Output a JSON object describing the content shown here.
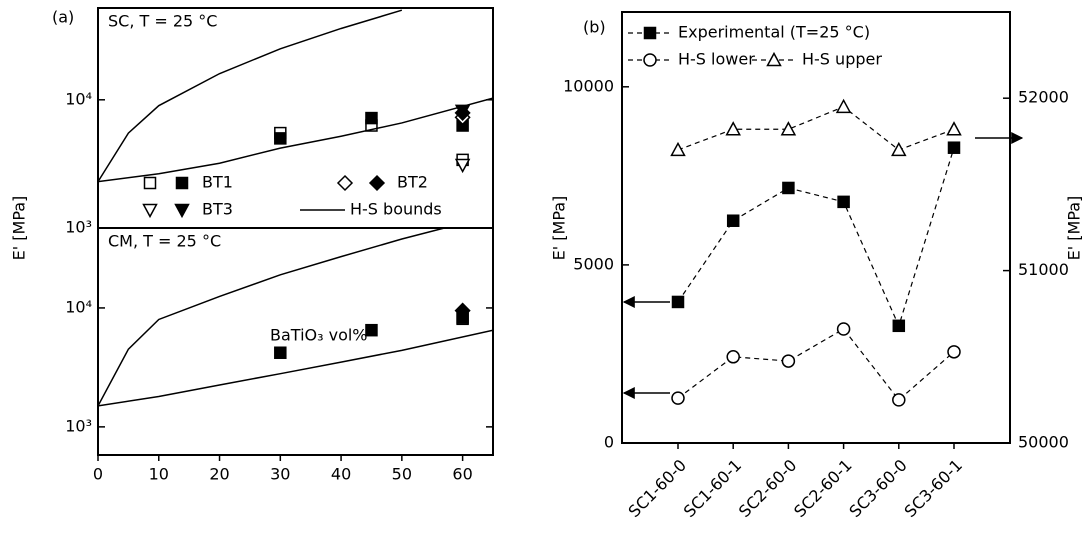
{
  "chart_data": [
    {
      "type": "scatter",
      "panel_label": "(a)",
      "title": "SC,  T = 25 °C",
      "ylabel": "E' [MPa]",
      "xlim": [
        0,
        65
      ],
      "ylim": [
        1000,
        52000
      ],
      "log_y": true,
      "yticks": [
        {
          "value": 1000,
          "label": "10³"
        },
        {
          "value": 10000,
          "label": "10⁴"
        }
      ],
      "legend": true,
      "series": [
        {
          "marker": "square",
          "filled": false,
          "color": "#000000",
          "x": [
            30,
            45,
            60
          ],
          "values": [
            5500,
            6300,
            3400
          ]
        },
        {
          "name": "BT1",
          "marker": "square",
          "filled": true,
          "color": "#000000",
          "x": [
            30,
            45,
            60
          ],
          "values": [
            5000,
            7200,
            6300
          ]
        },
        {
          "marker": "diamond",
          "filled": false,
          "color": "#000000",
          "x": [
            60
          ],
          "values": [
            7300
          ]
        },
        {
          "name": "BT2",
          "marker": "diamond",
          "filled": true,
          "color": "#000000",
          "x": [
            60
          ],
          "values": [
            7900
          ]
        },
        {
          "marker": "triangle-down",
          "filled": false,
          "color": "#000000",
          "x": [
            60
          ],
          "values": [
            3100
          ]
        },
        {
          "name": "BT3",
          "marker": "triangle-down",
          "filled": true,
          "color": "#000000",
          "x": [
            60
          ],
          "values": [
            8200
          ]
        },
        {
          "name": "H-S bounds",
          "marker": "none",
          "color": "#000000",
          "x": [
            0,
            10,
            20,
            30,
            40,
            50,
            65
          ],
          "values": [
            2300,
            2650,
            3200,
            4200,
            5200,
            6600,
            10300
          ]
        },
        {
          "marker": "none",
          "color": "#000000",
          "x": [
            0,
            5,
            10,
            20,
            30,
            40,
            50
          ],
          "values": [
            2300,
            5500,
            9000,
            16000,
            25000,
            36000,
            50000
          ]
        }
      ]
    },
    {
      "type": "scatter",
      "title": "CM,  T = 25 °C",
      "annotation": "BaTiO₃ vol%",
      "xlim": [
        0,
        65
      ],
      "xticks": [
        0,
        10,
        20,
        30,
        40,
        50,
        60
      ],
      "ylim": [
        580,
        47000
      ],
      "log_y": true,
      "yticks": [
        {
          "value": 1000,
          "label": "10³"
        },
        {
          "value": 10000,
          "label": "10⁴"
        }
      ],
      "series": [
        {
          "marker": "square",
          "filled": false,
          "color": "#000000",
          "x": [
            60
          ],
          "values": [
            8100
          ]
        },
        {
          "name": "BT1",
          "marker": "square",
          "filled": true,
          "color": "#000000",
          "x": [
            30,
            45,
            60
          ],
          "values": [
            4200,
            6500,
            8300
          ]
        },
        {
          "name": "BT2",
          "marker": "diamond",
          "filled": true,
          "color": "#000000",
          "x": [
            60
          ],
          "values": [
            9500
          ]
        },
        {
          "name": "H-S bounds",
          "marker": "none",
          "color": "#000000",
          "x": [
            0,
            10,
            20,
            30,
            40,
            50,
            65
          ],
          "values": [
            1500,
            1800,
            2250,
            2800,
            3500,
            4400,
            6500
          ]
        },
        {
          "marker": "none",
          "color": "#000000",
          "x": [
            0,
            5,
            10,
            20,
            30,
            40,
            50,
            57
          ],
          "values": [
            1500,
            4500,
            8000,
            12500,
            19000,
            27000,
            38000,
            47000
          ]
        }
      ]
    },
    {
      "type": "line",
      "panel_label": "(b)",
      "ylabel": "E' [MPa]",
      "y2label": "E' [MPa]",
      "categories": [
        "SC1-60-0",
        "SC1-60-1",
        "SC2-60-0",
        "SC2-60-1",
        "SC3-60-0",
        "SC3-60-1"
      ],
      "ylim": [
        0,
        12100
      ],
      "yticks": [
        0,
        5000,
        10000
      ],
      "y2lim": [
        50000,
        52500
      ],
      "y2ticks": [
        50000,
        51000,
        52000
      ],
      "legend": true,
      "series": [
        {
          "name": "Experimental (T=25 °C)",
          "marker": "square",
          "filled": true,
          "color": "#000000",
          "values": [
            3960,
            6240,
            7160,
            6770,
            3290,
            8290
          ]
        },
        {
          "name": "H-S lower",
          "marker": "circle",
          "filled": false,
          "color": "#000000",
          "values": [
            1260,
            2420,
            2300,
            3200,
            1210,
            2560
          ]
        },
        {
          "name": "H-S upper",
          "marker": "triangle-up",
          "filled": false,
          "color": "#000000",
          "axis": "y2",
          "values": [
            51700,
            51820,
            51820,
            51950,
            51700,
            51820
          ]
        }
      ]
    }
  ]
}
